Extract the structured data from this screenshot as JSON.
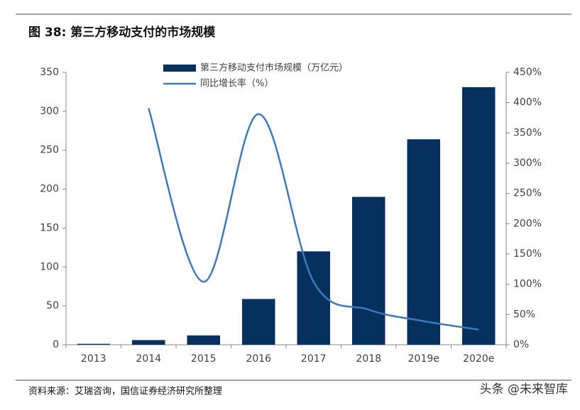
{
  "header": {
    "title": "图 38:  第三方移动支付的市场规模"
  },
  "chart_data": {
    "type": "bar_line",
    "categories": [
      "2013",
      "2014",
      "2015",
      "2016",
      "2017",
      "2018",
      "2019e",
      "2020e"
    ],
    "series": [
      {
        "name": "第三方移动支付市场规模（万亿元）",
        "type": "bar",
        "color": "#06305e",
        "values": [
          1.2,
          6,
          12,
          58.8,
          120,
          190,
          264,
          331
        ]
      },
      {
        "name": "同比增长率（%）",
        "type": "line",
        "axis": "y2",
        "color": "#3d79c0",
        "values": [
          null,
          391,
          104,
          381,
          104,
          58,
          39,
          25
        ]
      }
    ],
    "ylim": [
      0,
      350
    ],
    "yticks": [
      0,
      50,
      100,
      150,
      200,
      250,
      300,
      350
    ],
    "y2lim": [
      0,
      450
    ],
    "y2ticks": [
      {
        "value": 0,
        "label": "0%"
      },
      {
        "value": 50,
        "label": "50%"
      },
      {
        "value": 100,
        "label": "100%"
      },
      {
        "value": 150,
        "label": "150%"
      },
      {
        "value": 200,
        "label": "200%"
      },
      {
        "value": 250,
        "label": "250%"
      },
      {
        "value": 300,
        "label": "300%"
      },
      {
        "value": 350,
        "label": "350%"
      },
      {
        "value": 400,
        "label": "400%"
      },
      {
        "value": 450,
        "label": "450%"
      }
    ],
    "grid": false,
    "legend": "top"
  },
  "footer": {
    "source": "资料来源：艾瑞咨询，国信证券经济研究所整理",
    "watermark": "头条 @未来智库"
  }
}
